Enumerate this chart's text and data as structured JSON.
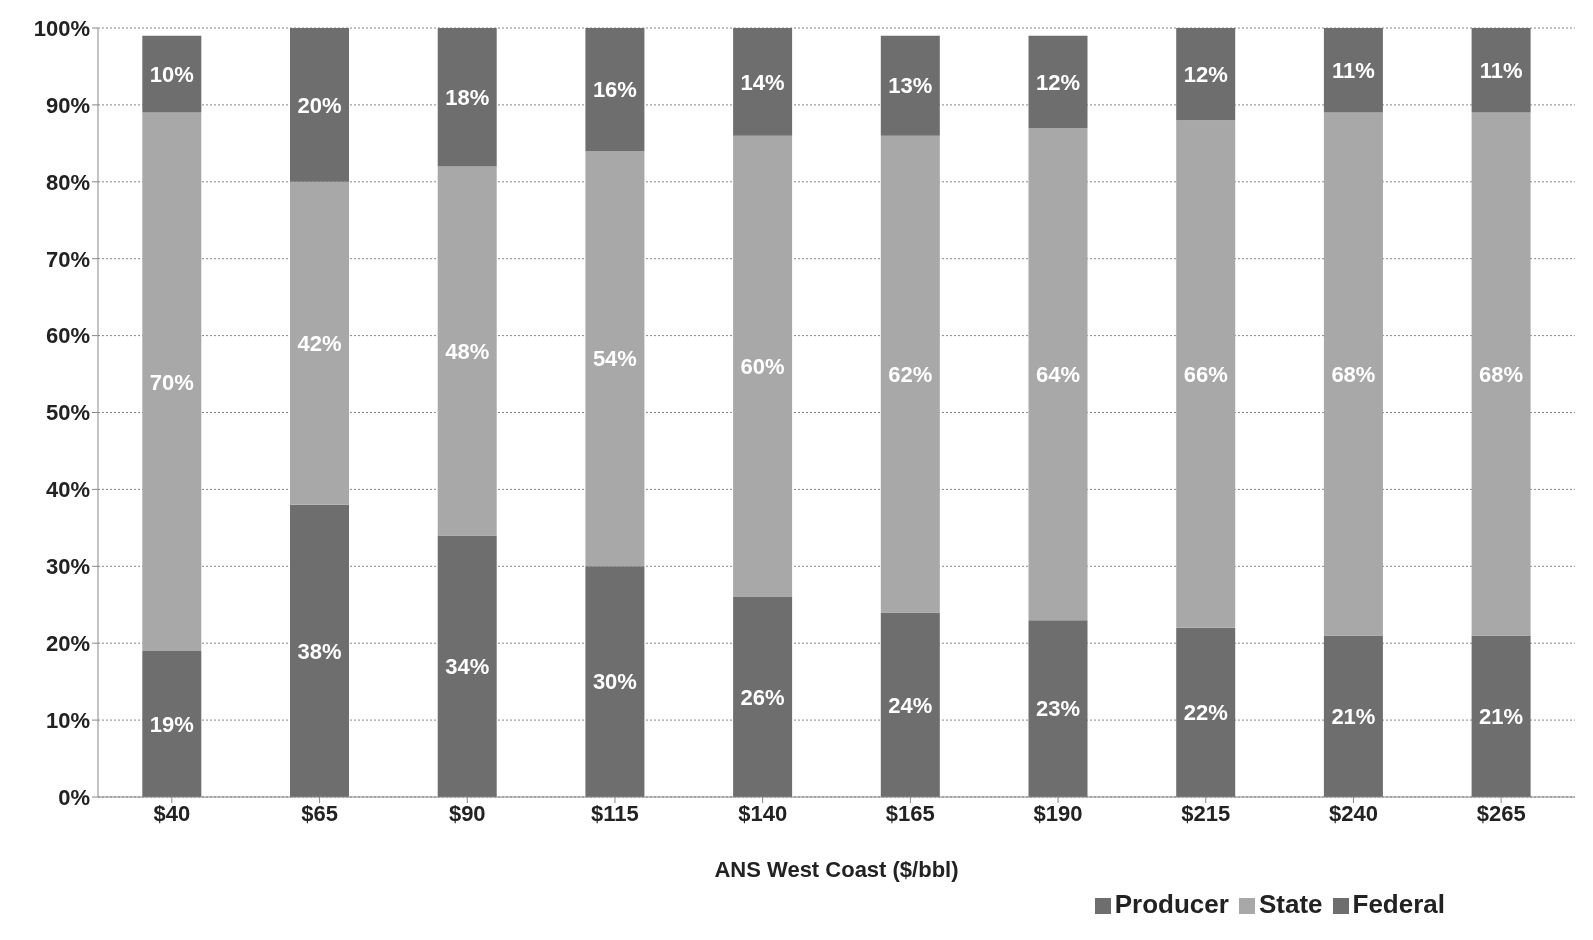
{
  "chart_data": {
    "type": "bar",
    "stacked": true,
    "xlabel": "ANS West Coast ($/bbl)",
    "categories": [
      "$40",
      "$65",
      "$90",
      "$115",
      "$140",
      "$165",
      "$190",
      "$215",
      "$240",
      "$265"
    ],
    "series": [
      {
        "name": "Producer",
        "color": "#6e6e6e",
        "values": [
          19,
          38,
          34,
          30,
          26,
          24,
          23,
          22,
          21,
          21
        ],
        "value_labels": [
          "19%",
          "38%",
          "34%",
          "30%",
          "26%",
          "24%",
          "23%",
          "22%",
          "21%",
          "21%"
        ]
      },
      {
        "name": "State",
        "color": "#a8a8a8",
        "values": [
          70,
          42,
          48,
          54,
          60,
          62,
          64,
          66,
          68,
          68
        ],
        "value_labels": [
          "70%",
          "42%",
          "48%",
          "54%",
          "60%",
          "62%",
          "64%",
          "66%",
          "68%",
          "68%"
        ]
      },
      {
        "name": "Federal",
        "color": "#6e6e6e",
        "values": [
          10,
          20,
          18,
          16,
          14,
          13,
          12,
          12,
          11,
          11
        ],
        "value_labels": [
          "10%",
          "20%",
          "18%",
          "16%",
          "14%",
          "13%",
          "12%",
          "12%",
          "11%",
          "11%"
        ]
      }
    ],
    "ylim": [
      0,
      100
    ],
    "yticks": [
      {
        "value": 0,
        "label": "0%"
      },
      {
        "value": 10,
        "label": "10%"
      },
      {
        "value": 20,
        "label": "20%"
      },
      {
        "value": 30,
        "label": "30%"
      },
      {
        "value": 40,
        "label": "40%"
      },
      {
        "value": 50,
        "label": "50%"
      },
      {
        "value": 60,
        "label": "60%"
      },
      {
        "value": 70,
        "label": "70%"
      },
      {
        "value": 80,
        "label": "80%"
      },
      {
        "value": 90,
        "label": "90%"
      },
      {
        "value": 100,
        "label": "100%"
      }
    ],
    "grid": "y",
    "legend": "bottom right"
  }
}
